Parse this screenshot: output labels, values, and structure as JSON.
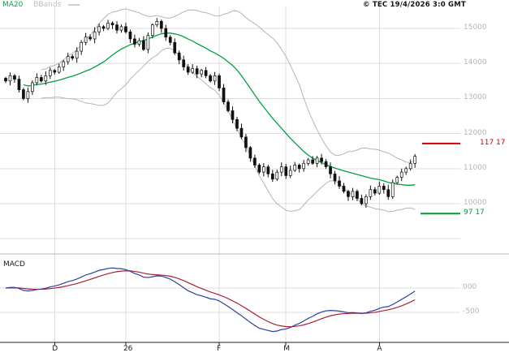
{
  "legend": {
    "ma20": "MA20",
    "bbands": "BBands"
  },
  "copyright": "© TEC 19/4/2026 3:0 GMT",
  "macd_label": "MACD",
  "levels": {
    "resistance": {
      "label": "117 17",
      "value": 11717
    },
    "support": {
      "label": "97 17",
      "value": 9717
    }
  },
  "colors": {
    "ma20": "#00a243",
    "bbands": "#b5b5b5",
    "candle": "#111111",
    "resistance": "#cc0000",
    "support": "#009933",
    "macd_line": "#2f3f9e",
    "macd_signal": "#aa2233",
    "grid": "#dcdcdc",
    "separator": "#b8b8b8",
    "axis": "#222222"
  },
  "chart_data": {
    "type": "candlestick",
    "title": "",
    "xlabel": "",
    "ylabel": "",
    "ylim": [
      9000,
      15500
    ],
    "grid": true,
    "y_axis": {
      "ticks": [
        {
          "label": "15000",
          "value": 15000
        },
        {
          "label": "14000",
          "value": 14000
        },
        {
          "label": "13000",
          "value": 13000
        },
        {
          "label": "12000",
          "value": 12000
        },
        {
          "label": "11000",
          "value": 11000
        },
        {
          "label": "10000",
          "value": 10000
        },
        {
          "label": "",
          "value": 9000
        }
      ]
    },
    "x_axis": {
      "ticks": [
        {
          "label": "D",
          "index": 11
        },
        {
          "label": "26",
          "index": 27
        },
        {
          "label": "F",
          "index": 48
        },
        {
          "label": "M",
          "index": 63
        },
        {
          "label": "A",
          "index": 84
        }
      ]
    },
    "closes": [
      13500,
      13650,
      13550,
      13250,
      13000,
      13200,
      13450,
      13600,
      13500,
      13650,
      13800,
      13750,
      13900,
      14050,
      14200,
      14150,
      14350,
      14600,
      14750,
      14700,
      14900,
      15050,
      15000,
      15150,
      15100,
      14950,
      15050,
      14900,
      14700,
      14550,
      14650,
      14400,
      14800,
      15100,
      15200,
      15000,
      14750,
      14600,
      14300,
      14100,
      13900,
      13750,
      13850,
      13700,
      13800,
      13650,
      13500,
      13650,
      13300,
      12900,
      12650,
      12400,
      12150,
      11900,
      11600,
      11300,
      11100,
      10900,
      11050,
      10850,
      10700,
      10900,
      11050,
      10800,
      10950,
      11100,
      11000,
      11150,
      11250,
      11150,
      11300,
      11200,
      11050,
      10850,
      10650,
      10500,
      10350,
      10200,
      10350,
      10150,
      10000,
      10200,
      10400,
      10300,
      10500,
      10400,
      10200,
      10600,
      10750,
      10900,
      11000,
      11150,
      11350
    ],
    "indicators": {
      "ma_window": 20,
      "bb_mult": 2,
      "macd": {
        "fast": 12,
        "slow": 26,
        "signal": 9
      }
    },
    "macd_axis": {
      "ticks": [
        {
          "label": "000",
          "value": 0
        },
        {
          "label": "-500",
          "value": -500
        }
      ]
    }
  }
}
